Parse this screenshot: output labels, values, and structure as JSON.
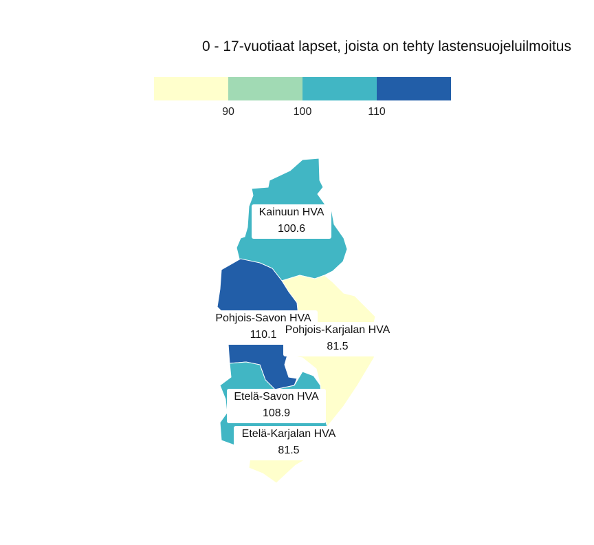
{
  "title": "0 - 17-vuotiaat lapset, joista on tehty lastensuojeluilmoitus",
  "legend": {
    "colors": [
      "#ffffcc",
      "#a1dab4",
      "#41b6c4",
      "#225ea8"
    ],
    "ticks": [
      "90",
      "100",
      "110"
    ]
  },
  "regions": [
    {
      "name": "Kainuun HVA",
      "value": "100.6",
      "color": "#41b6c4"
    },
    {
      "name": "Pohjois-Savon HVA",
      "value": "110.1",
      "color": "#225ea8"
    },
    {
      "name": "Pohjois-Karjalan HVA",
      "value": "81.5",
      "color": "#ffffcc"
    },
    {
      "name": "Etelä-Savon HVA",
      "value": "108.9",
      "color": "#41b6c4"
    },
    {
      "name": "Etelä-Karjalan HVA",
      "value": "81.5",
      "color": "#ffffcc"
    }
  ]
}
